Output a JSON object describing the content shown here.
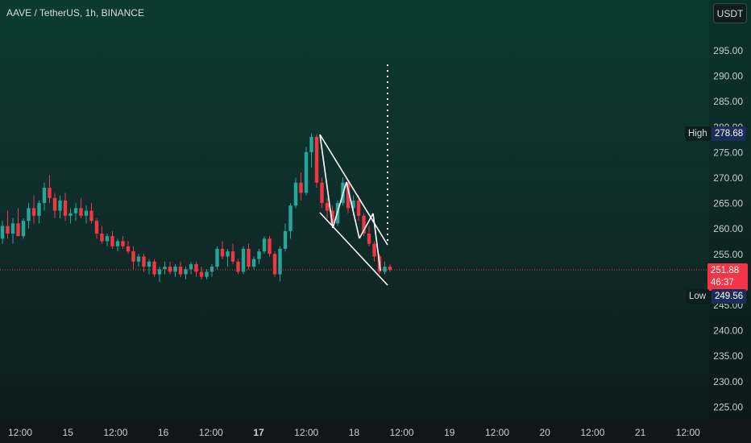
{
  "header": {
    "symbol": "AAVE / TetherUS, 1h, BINANCE"
  },
  "currency_button": "USDT",
  "colors": {
    "up": "#26a69a",
    "down": "#f23645",
    "axis_text": "#c8cfcf",
    "pattern": "#ffffff",
    "price_line": "#f23645"
  },
  "price_tags": {
    "high": {
      "label": "High",
      "value": "278.68"
    },
    "current": {
      "value": "251.88",
      "countdown": "46:37"
    },
    "low": {
      "label": "Low",
      "value": "249.56"
    }
  },
  "chart_data": {
    "type": "candlestick",
    "title": "AAVE / TetherUS, 1h, BINANCE",
    "y_ticks": [
      "295.00",
      "290.00",
      "285.00",
      "280.00",
      "275.00",
      "270.00",
      "265.00",
      "260.00",
      "255.00",
      "250.00",
      "245.00",
      "240.00",
      "235.00",
      "230.00",
      "225.00"
    ],
    "x_ticks": [
      "12:00",
      "15",
      "12:00",
      "16",
      "12:00",
      "17",
      "12:00",
      "18",
      "12:00",
      "19",
      "12:00",
      "20",
      "12:00",
      "21",
      "12:00"
    ],
    "ylim": [
      222,
      300
    ],
    "current_price": 251.88,
    "high": 278.68,
    "low": 249.56,
    "candles": [
      [
        258.0,
        261.5,
        257.0,
        260.5
      ],
      [
        260.5,
        263.5,
        258.0,
        259.0
      ],
      [
        259.0,
        262.0,
        257.0,
        261.0
      ],
      [
        261.0,
        264.0,
        259.0,
        258.5
      ],
      [
        258.5,
        262.0,
        258.0,
        261.5
      ],
      [
        261.5,
        265.0,
        260.0,
        264.0
      ],
      [
        264.0,
        266.5,
        261.0,
        262.5
      ],
      [
        262.5,
        265.5,
        261.0,
        265.0
      ],
      [
        265.0,
        269.0,
        263.5,
        268.0
      ],
      [
        268.0,
        270.5,
        265.0,
        266.0
      ],
      [
        266.0,
        267.0,
        262.0,
        263.5
      ],
      [
        263.5,
        266.5,
        262.0,
        265.5
      ],
      [
        265.5,
        267.0,
        261.5,
        262.5
      ],
      [
        262.5,
        264.0,
        261.0,
        263.0
      ],
      [
        263.0,
        265.0,
        261.5,
        264.0
      ],
      [
        264.0,
        266.0,
        262.0,
        262.5
      ],
      [
        262.5,
        264.5,
        261.0,
        263.5
      ],
      [
        263.5,
        265.0,
        261.0,
        261.5
      ],
      [
        261.5,
        262.0,
        258.0,
        259.0
      ],
      [
        259.0,
        260.5,
        257.0,
        257.5
      ],
      [
        257.5,
        259.0,
        256.5,
        258.5
      ],
      [
        258.5,
        259.5,
        256.0,
        256.5
      ],
      [
        256.5,
        258.0,
        255.5,
        257.5
      ],
      [
        257.5,
        258.5,
        256.0,
        256.5
      ],
      [
        256.5,
        257.5,
        255.0,
        255.5
      ],
      [
        255.5,
        256.5,
        252.0,
        253.5
      ],
      [
        253.5,
        255.0,
        252.5,
        254.5
      ],
      [
        254.5,
        255.0,
        251.5,
        252.5
      ],
      [
        252.5,
        254.0,
        251.0,
        253.5
      ],
      [
        253.5,
        254.0,
        250.5,
        251.0
      ],
      [
        251.0,
        252.5,
        249.5,
        252.0
      ],
      [
        252.0,
        253.5,
        251.0,
        252.5
      ],
      [
        252.5,
        253.5,
        251.0,
        251.5
      ],
      [
        251.5,
        253.0,
        250.5,
        252.5
      ],
      [
        252.5,
        253.5,
        250.5,
        251.0
      ],
      [
        251.0,
        252.5,
        250.0,
        252.0
      ],
      [
        252.0,
        253.5,
        251.0,
        253.0
      ],
      [
        253.0,
        253.5,
        250.5,
        251.5
      ],
      [
        251.5,
        252.5,
        250.0,
        250.5
      ],
      [
        250.5,
        252.0,
        250.0,
        251.5
      ],
      [
        251.5,
        253.0,
        250.5,
        252.5
      ],
      [
        252.5,
        256.5,
        252.0,
        256.0
      ],
      [
        256.0,
        257.5,
        254.0,
        254.5
      ],
      [
        254.5,
        256.0,
        252.5,
        255.5
      ],
      [
        255.5,
        257.0,
        253.0,
        253.5
      ],
      [
        253.5,
        254.0,
        251.0,
        251.5
      ],
      [
        251.5,
        256.5,
        251.0,
        256.0
      ],
      [
        256.0,
        257.0,
        252.0,
        252.5
      ],
      [
        252.5,
        254.5,
        252.0,
        254.0
      ],
      [
        254.0,
        256.0,
        253.0,
        255.5
      ],
      [
        255.5,
        258.5,
        255.0,
        258.0
      ],
      [
        258.0,
        258.5,
        254.5,
        255.0
      ],
      [
        255.0,
        255.5,
        250.5,
        251.0
      ],
      [
        251.0,
        256.5,
        249.6,
        256.0
      ],
      [
        256.0,
        261.0,
        255.5,
        259.5
      ],
      [
        259.5,
        265.0,
        258.0,
        264.5
      ],
      [
        264.5,
        270.0,
        264.0,
        269.0
      ],
      [
        269.0,
        271.0,
        265.5,
        267.0
      ],
      [
        267.0,
        276.0,
        266.5,
        275.0
      ],
      [
        275.0,
        278.68,
        272.0,
        278.0
      ],
      [
        278.0,
        278.5,
        268.0,
        269.0
      ],
      [
        269.0,
        270.0,
        264.0,
        265.0
      ],
      [
        265.0,
        266.0,
        262.0,
        263.5
      ],
      [
        263.5,
        264.5,
        260.5,
        261.0
      ],
      [
        261.0,
        265.5,
        260.5,
        265.0
      ],
      [
        265.0,
        270.0,
        264.5,
        269.0
      ],
      [
        269.0,
        269.5,
        263.0,
        264.0
      ],
      [
        264.0,
        266.5,
        262.5,
        265.5
      ],
      [
        265.5,
        266.5,
        261.5,
        262.5
      ],
      [
        262.5,
        263.0,
        258.5,
        259.0
      ],
      [
        259.0,
        260.5,
        256.5,
        257.0
      ],
      [
        257.0,
        257.5,
        253.5,
        254.5
      ],
      [
        254.5,
        255.0,
        251.0,
        251.5
      ],
      [
        251.5,
        253.5,
        251.0,
        252.5
      ],
      [
        252.5,
        253.0,
        251.5,
        251.88
      ]
    ]
  }
}
